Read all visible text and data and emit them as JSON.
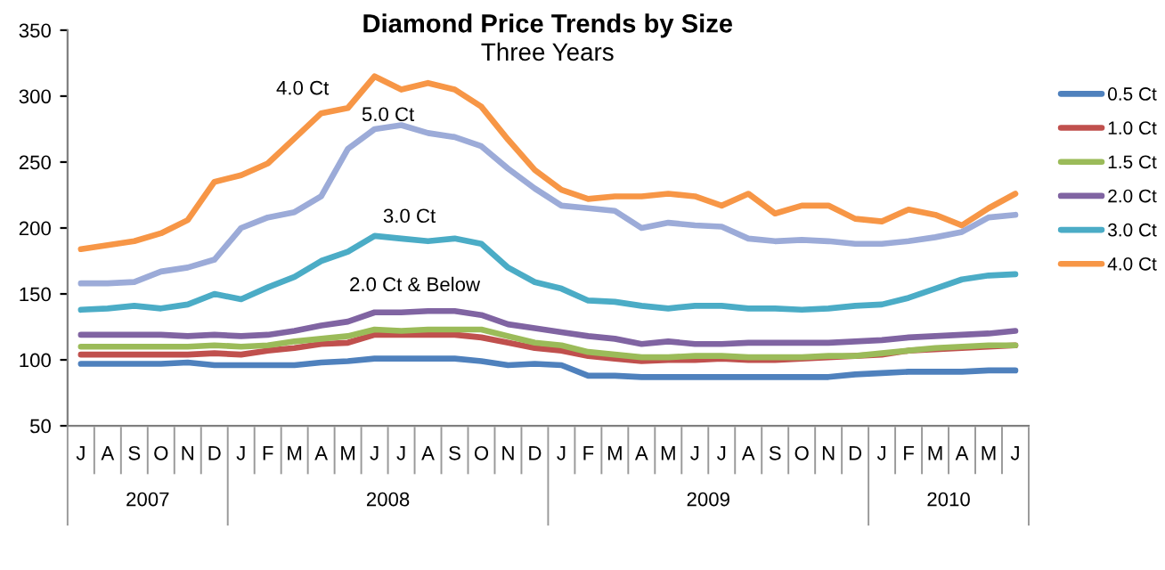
{
  "chart_data": {
    "type": "line",
    "title": "Diamond Price Trends by Size",
    "subtitle": "Three Years",
    "categories": [
      "J",
      "A",
      "S",
      "O",
      "N",
      "D",
      "J",
      "F",
      "M",
      "A",
      "M",
      "J",
      "J",
      "A",
      "S",
      "O",
      "N",
      "D",
      "J",
      "F",
      "M",
      "A",
      "M",
      "J",
      "J",
      "A",
      "S",
      "O",
      "N",
      "D",
      "J",
      "F",
      "M",
      "A",
      "M",
      "J"
    ],
    "ylim": [
      50,
      350
    ],
    "yticks": [
      50,
      100,
      150,
      200,
      250,
      300,
      350
    ],
    "grid": false,
    "legend": "right",
    "marker": "none",
    "line_style": "solid",
    "series": [
      {
        "name": "0.5 Ct",
        "color": "#4f81bd",
        "values": [
          97,
          97,
          97,
          97,
          98,
          96,
          96,
          96,
          96,
          98,
          99,
          101,
          101,
          101,
          101,
          99,
          96,
          97,
          96,
          88,
          88,
          87,
          87,
          87,
          87,
          87,
          87,
          87,
          87,
          89,
          90,
          91,
          91,
          91,
          92,
          92
        ]
      },
      {
        "name": "1.0 Ct",
        "color": "#c0504d",
        "values": [
          104,
          104,
          104,
          104,
          104,
          105,
          104,
          107,
          109,
          112,
          113,
          119,
          119,
          119,
          119,
          117,
          113,
          109,
          107,
          103,
          101,
          99,
          100,
          100,
          101,
          100,
          100,
          101,
          102,
          103,
          104,
          107,
          108,
          109,
          110,
          111
        ]
      },
      {
        "name": "1.5 Ct",
        "color": "#9bbb59",
        "values": [
          110,
          110,
          110,
          110,
          110,
          111,
          110,
          111,
          114,
          116,
          118,
          123,
          122,
          123,
          123,
          123,
          118,
          113,
          111,
          106,
          104,
          102,
          102,
          103,
          103,
          102,
          102,
          102,
          103,
          103,
          105,
          107,
          109,
          110,
          111,
          111
        ]
      },
      {
        "name": "2.0 Ct",
        "color": "#8064a2",
        "values": [
          119,
          119,
          119,
          119,
          118,
          119,
          118,
          119,
          122,
          126,
          129,
          136,
          136,
          137,
          137,
          134,
          127,
          124,
          121,
          118,
          116,
          112,
          114,
          112,
          112,
          113,
          113,
          113,
          113,
          114,
          115,
          117,
          118,
          119,
          120,
          122
        ]
      },
      {
        "name": "3.0 Ct",
        "color": "#4bacc6",
        "values": [
          138,
          139,
          141,
          139,
          142,
          150,
          146,
          155,
          163,
          175,
          182,
          194,
          192,
          190,
          192,
          188,
          170,
          159,
          154,
          145,
          144,
          141,
          139,
          141,
          141,
          139,
          139,
          138,
          139,
          141,
          142,
          147,
          154,
          161,
          164,
          165
        ]
      },
      {
        "name": "4.0 Ct",
        "color": "#f79646",
        "values": [
          184,
          187,
          190,
          196,
          206,
          235,
          240,
          249,
          268,
          287,
          291,
          315,
          305,
          310,
          305,
          292,
          267,
          244,
          229,
          222,
          224,
          224,
          226,
          224,
          217,
          226,
          211,
          217,
          217,
          207,
          205,
          214,
          210,
          202,
          215,
          226
        ]
      },
      {
        "color": "#9cabd8",
        "values": [
          158,
          158,
          159,
          167,
          170,
          176,
          200,
          208,
          212,
          224,
          260,
          275,
          278,
          272,
          269,
          262,
          245,
          230,
          217,
          215,
          213,
          200,
          204,
          202,
          201,
          192,
          190,
          191,
          190,
          188,
          188,
          190,
          193,
          197,
          208,
          210
        ]
      }
    ],
    "annotations": [
      "4.0 Ct",
      "5.0 Ct",
      "3.0 Ct",
      "2.0 Ct & Below",
      "2007",
      "2008",
      "2009",
      "2010"
    ]
  }
}
